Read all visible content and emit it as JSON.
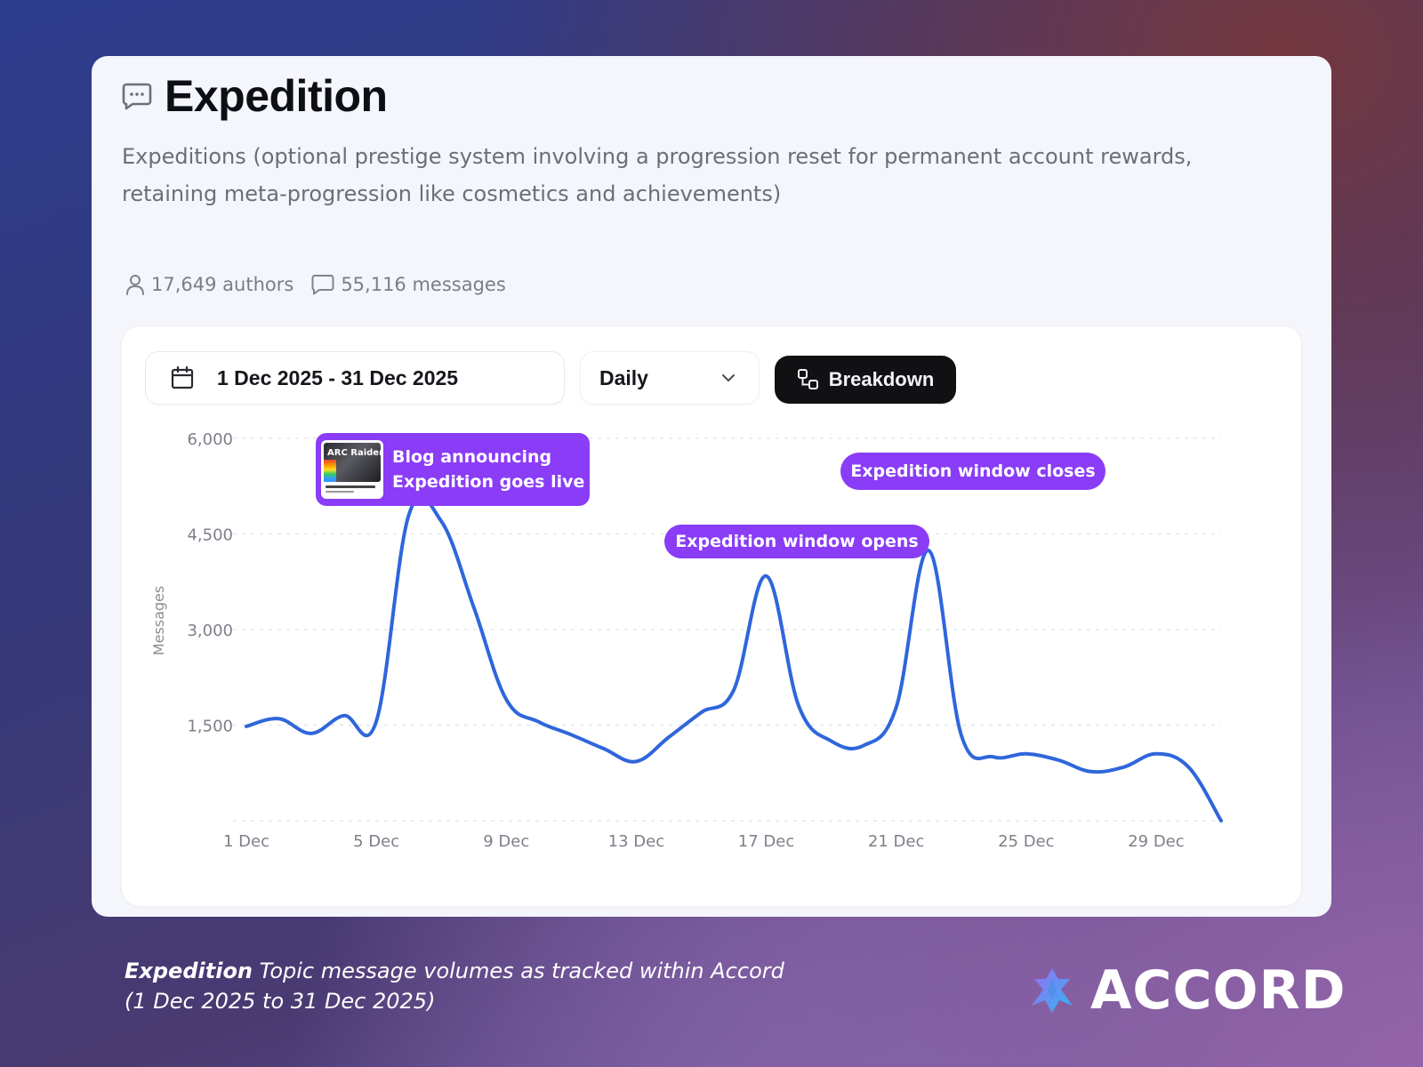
{
  "topic": {
    "title": "Expedition",
    "icon": "chat-bubble-icon",
    "description": "Expeditions (optional prestige system involving a progression reset for permanent account rewards, retaining meta-progression like cosmetics and achievements)",
    "authors": "17,649 authors",
    "messages": "55,116 messages"
  },
  "controls": {
    "date_range": "1 Dec 2025 - 31 Dec 2025",
    "granularity": "Daily",
    "breakdown_label": "Breakdown"
  },
  "annotations": {
    "blog": "Blog announcing Expedition goes live",
    "closes": "Expedition window closes",
    "opens": "Expedition window opens",
    "thumb_logo": "ARC Raiders"
  },
  "chart_data": {
    "type": "line",
    "title": "",
    "xlabel": "",
    "ylabel": "Messages",
    "ylim": [
      0,
      6000
    ],
    "yticks": [
      1500,
      3000,
      4500,
      6000
    ],
    "ytick_labels": [
      "1,500",
      "3,000",
      "4,500",
      "6,000"
    ],
    "grid": true,
    "x_tick_labels": [
      "1 Dec",
      "5 Dec",
      "9 Dec",
      "13 Dec",
      "17 Dec",
      "21 Dec",
      "25 Dec",
      "29 Dec"
    ],
    "x_tick_days": [
      1,
      5,
      9,
      13,
      17,
      21,
      25,
      29
    ],
    "x_range": [
      1,
      31
    ],
    "color": "#2f66db",
    "series": [
      {
        "x": [
          1,
          2,
          3,
          4,
          5,
          6,
          7,
          8,
          9,
          10,
          11,
          12,
          13,
          14,
          15,
          16,
          17,
          18,
          19,
          20,
          21,
          22,
          23,
          24,
          25,
          26,
          27,
          28,
          29,
          30,
          31
        ],
        "values": [
          1480,
          1600,
          1370,
          1650,
          1560,
          4800,
          4700,
          3350,
          1900,
          1550,
          1350,
          1130,
          930,
          1310,
          1700,
          2050,
          3840,
          1800,
          1250,
          1180,
          1780,
          4240,
          1350,
          1000,
          1050,
          950,
          770,
          840,
          1050,
          840,
          0
        ]
      }
    ]
  },
  "footer": {
    "caption_bold": "Expedition",
    "caption_rest": " Topic message volumes as tracked within Accord",
    "caption_line2": "(1 Dec 2025 to 31 Dec 2025)",
    "brand": "ACCORD",
    "brand_icon": "accord-logo-icon"
  }
}
